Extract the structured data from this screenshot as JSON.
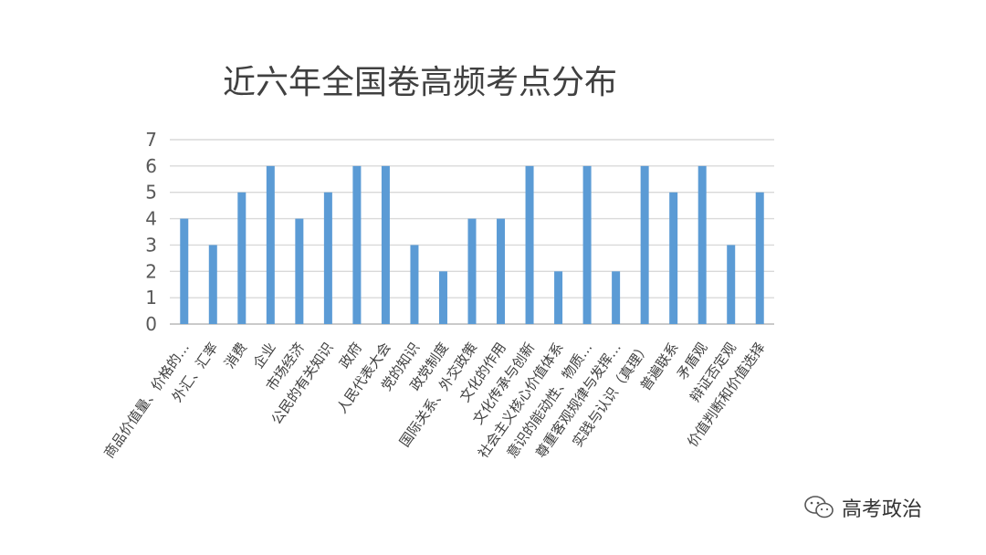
{
  "chart_data": {
    "type": "bar",
    "title": "近六年全国卷高频考点分布",
    "categories": [
      "商品价值量、价格的…",
      "外汇、汇率",
      "消费",
      "企业",
      "市场经济",
      "公民的有关知识",
      "政府",
      "人民代表大会",
      "党的知识",
      "政党制度",
      "国际关系、外交政策",
      "文化的作用",
      "文化传承与创新",
      "社会主义核心价值体系",
      "意识的能动性、物质…",
      "尊重客观规律与发挥…",
      "实践与认识（真理）",
      "普遍联系",
      "矛盾观",
      "辩证否定观",
      "价值判断和价值选择"
    ],
    "values": [
      4,
      3,
      5,
      6,
      4,
      5,
      6,
      6,
      3,
      2,
      4,
      4,
      6,
      2,
      6,
      2,
      6,
      5,
      6,
      3,
      5
    ],
    "ylim": [
      0,
      7
    ],
    "yticks": [
      "0",
      "1",
      "2",
      "3",
      "4",
      "5",
      "6",
      "7"
    ],
    "bar_color": "#5b9bd5",
    "grid": true,
    "legend": "none"
  },
  "watermark": {
    "text": "高考政治",
    "icon": "wechat-icon"
  }
}
